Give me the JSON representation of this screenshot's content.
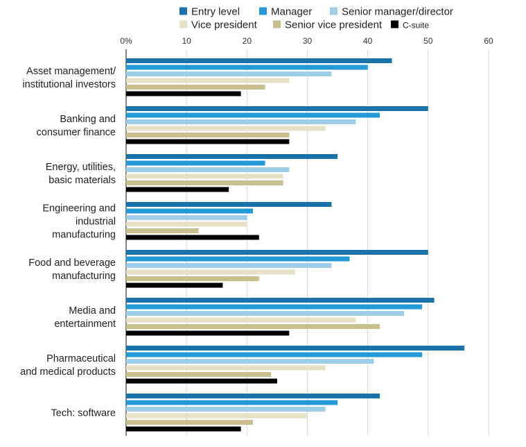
{
  "chart_data": {
    "type": "bar",
    "orientation": "horizontal",
    "title": "",
    "xlabel": "",
    "ylabel": "",
    "xlim": [
      0,
      60
    ],
    "x_ticks": [
      0,
      10,
      20,
      30,
      40,
      50,
      60
    ],
    "x_tick_labels": [
      "0%",
      "10",
      "20",
      "30",
      "40",
      "50",
      "60"
    ],
    "axis_position": "top",
    "grid": true,
    "legend_position": "top",
    "categories": [
      [
        "Asset management/",
        "institutional investors"
      ],
      [
        "Banking and",
        "consumer finance"
      ],
      [
        "Energy, utilities,",
        "basic materials"
      ],
      [
        "Engineering and",
        "industrial",
        "manufacturing"
      ],
      [
        "Food and beverage",
        "manufacturing"
      ],
      [
        "Media and",
        "entertainment"
      ],
      [
        "Pharmaceutical",
        "and medical products"
      ],
      [
        "Tech: software"
      ]
    ],
    "series": [
      {
        "name": "Entry level",
        "color": "#1a73a8",
        "values": [
          44,
          50,
          35,
          34,
          50,
          51,
          56,
          42
        ]
      },
      {
        "name": "Manager",
        "color": "#2399d6",
        "values": [
          40,
          42,
          23,
          21,
          37,
          49,
          49,
          35
        ]
      },
      {
        "name": "Senior manager/director",
        "color": "#9fcde8",
        "values": [
          34,
          38,
          27,
          20,
          34,
          46,
          41,
          33
        ]
      },
      {
        "name": "Vice president",
        "color": "#e6e0c6",
        "values": [
          27,
          33,
          26,
          20,
          28,
          38,
          33,
          30
        ]
      },
      {
        "name": "Senior vice president",
        "color": "#c9be8e",
        "values": [
          23,
          27,
          26,
          12,
          22,
          42,
          24,
          21
        ]
      },
      {
        "name": "C-suite",
        "color": "#000000",
        "values": [
          19,
          27,
          17,
          22,
          16,
          27,
          25,
          19
        ]
      }
    ]
  }
}
